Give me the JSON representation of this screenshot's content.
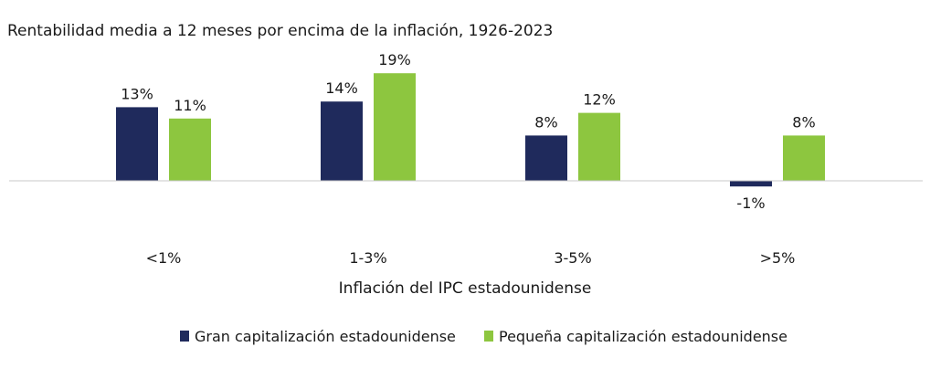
{
  "chart_data": {
    "type": "bar",
    "title": "Rentabilidad media a 12 meses por encima de la inflación, 1926-2023",
    "xlabel": "Inflación del IPC estadounidense",
    "ylabel": "",
    "categories": [
      "<1%",
      "1-3%",
      "3-5%",
      ">5%"
    ],
    "series": [
      {
        "name": "Gran capitalización estadounidense",
        "values": [
          13,
          14,
          8,
          -1
        ],
        "labels": [
          "13%",
          "14%",
          "8%",
          "-1%"
        ],
        "color": "#1f2a5c"
      },
      {
        "name": "Pequeña capitalización estadounidense",
        "values": [
          11,
          19,
          12,
          8
        ],
        "labels": [
          "11%",
          "19%",
          "12%",
          "8%"
        ],
        "color": "#8dc63f"
      }
    ],
    "ylim": [
      -1,
      19
    ],
    "grid": false,
    "legend_position": "bottom"
  },
  "colors": {
    "baseline": "#c8c8c8"
  }
}
